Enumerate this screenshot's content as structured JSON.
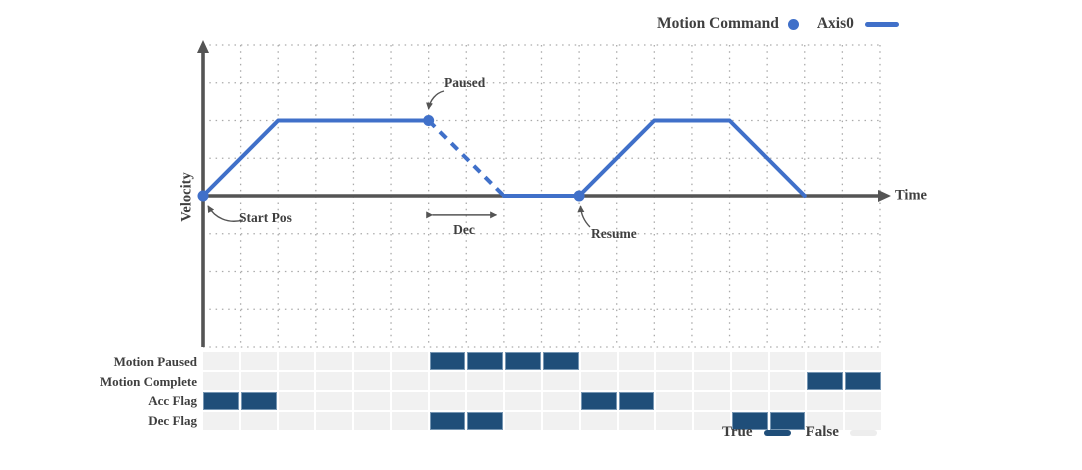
{
  "colors": {
    "accent_blue": "#4070C9",
    "flag_true_navy": "#1F4E79",
    "flag_false_gray": "#F1F1F1",
    "axis_gray": "#545454",
    "text_gray": "#3F3F3F",
    "grid_dot_gray": "#AAAAAA",
    "false_swatch_gray": "#EDEDED"
  },
  "chart_legend": {
    "motion_command": "Motion Command",
    "axis0": "Axis0"
  },
  "axis_labels": {
    "y": "Velocity",
    "x": "Time"
  },
  "annotations": {
    "paused": "Paused",
    "start_pos": "Start Pos",
    "dec": "Dec",
    "resume": "Resume"
  },
  "timing": {
    "rows": [
      {
        "label": "Motion Paused",
        "cells": [
          0,
          0,
          0,
          0,
          0,
          0,
          1,
          1,
          1,
          1,
          0,
          0,
          0,
          0,
          0,
          0,
          0,
          0
        ]
      },
      {
        "label": "Motion Complete",
        "cells": [
          0,
          0,
          0,
          0,
          0,
          0,
          0,
          0,
          0,
          0,
          0,
          0,
          0,
          0,
          0,
          0,
          1,
          1
        ]
      },
      {
        "label": "Acc Flag",
        "cells": [
          1,
          1,
          0,
          0,
          0,
          0,
          0,
          0,
          0,
          0,
          1,
          1,
          0,
          0,
          0,
          0,
          0,
          0
        ]
      },
      {
        "label": "Dec Flag",
        "cells": [
          0,
          0,
          0,
          0,
          0,
          0,
          1,
          1,
          0,
          0,
          0,
          0,
          0,
          0,
          1,
          1,
          0,
          0
        ]
      }
    ],
    "legend": {
      "true_label": "True",
      "false_label": "False"
    }
  },
  "chart_data": {
    "type": "line",
    "title": "Velocity profile with pause / resume motion command",
    "xlabel": "Time",
    "ylabel": "Velocity",
    "xlim": [
      0,
      18
    ],
    "ylim": [
      -4,
      4
    ],
    "grid": true,
    "legend_position": "top-right",
    "series": [
      {
        "name": "Axis0",
        "style": "solid",
        "points": [
          [
            0,
            0
          ],
          [
            2,
            2
          ],
          [
            6,
            2
          ]
        ]
      },
      {
        "name": "Axis0",
        "style": "dashed",
        "points": [
          [
            6,
            2
          ],
          [
            8,
            0
          ]
        ]
      },
      {
        "name": "Axis0",
        "style": "solid",
        "points": [
          [
            8,
            0
          ],
          [
            10,
            0
          ],
          [
            12,
            2
          ],
          [
            14,
            2
          ],
          [
            16,
            0
          ]
        ]
      }
    ],
    "markers": {
      "name": "Motion Command",
      "points": [
        [
          0,
          0
        ],
        [
          6,
          2
        ],
        [
          10,
          0
        ]
      ],
      "labels": [
        "Start Pos",
        "Paused",
        "Resume"
      ]
    },
    "dec_span": {
      "label": "Dec",
      "x_range": [
        6.1,
        7.8
      ],
      "y": -0.5
    }
  }
}
